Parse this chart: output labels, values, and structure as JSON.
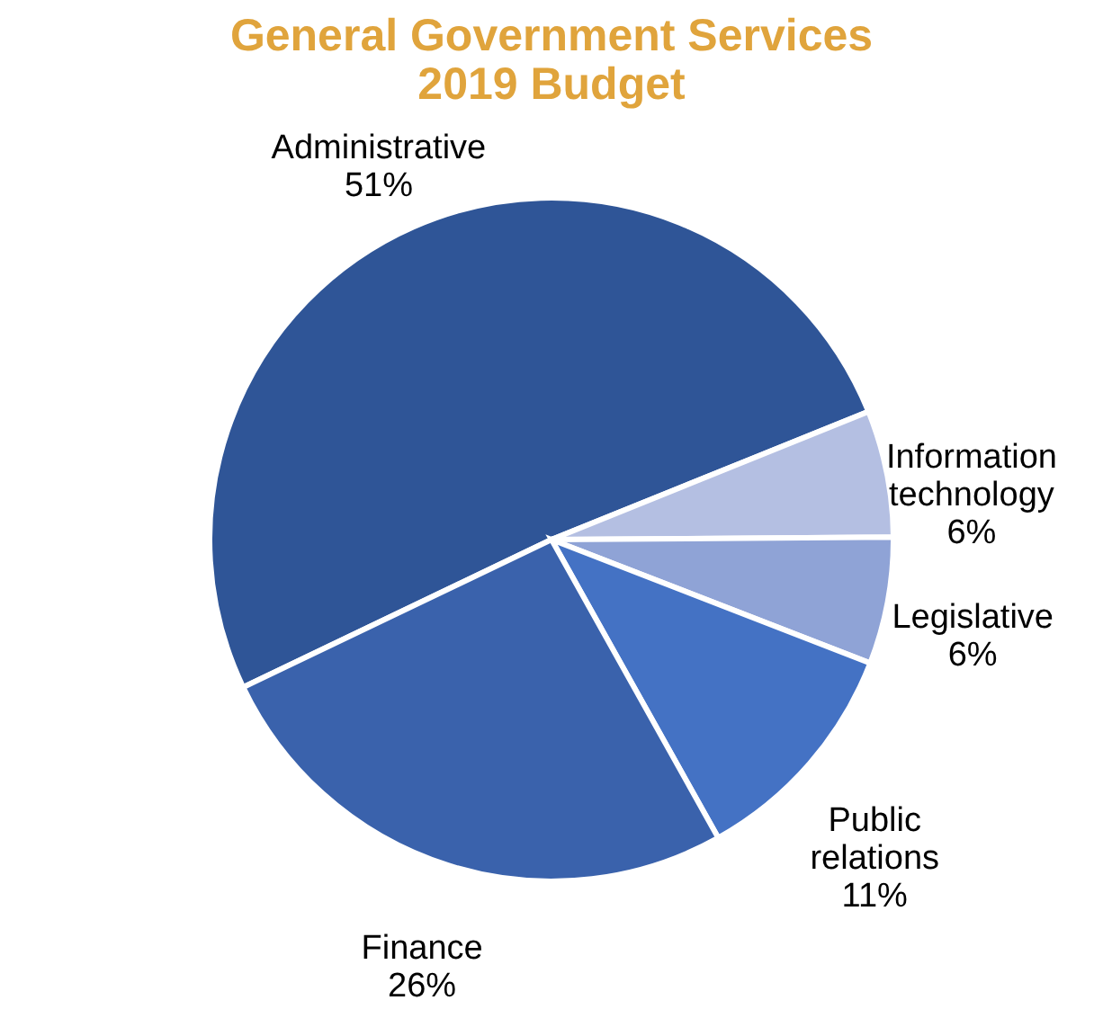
{
  "chart_data": {
    "type": "pie",
    "title": "General Government Services 2019 Budget",
    "categories": [
      "Administrative",
      "Information technology",
      "Legislative",
      "Public relations",
      "Finance"
    ],
    "values": [
      51,
      6,
      6,
      11,
      26
    ],
    "value_labels": [
      "51%",
      "6%",
      "6%",
      "11%",
      "26%"
    ],
    "colors": [
      "#2f5597",
      "#b4bfe2",
      "#8fa3d6",
      "#4472c4",
      "#3a62ac"
    ],
    "legend": false
  }
}
